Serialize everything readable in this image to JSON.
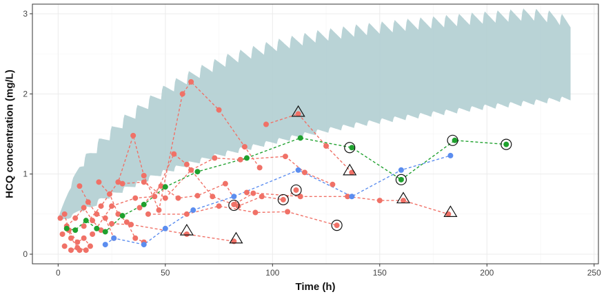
{
  "chart_data": {
    "type": "scatter",
    "title": "",
    "xlabel": "Time (h)",
    "ylabel": "HCQ concentration (mg/L)",
    "xlim": [
      -12,
      252
    ],
    "ylim": [
      -0.12,
      3.12
    ],
    "xticks": [
      0,
      50,
      100,
      150,
      200,
      250
    ],
    "xtick_labels": [
      "0",
      "50",
      "100",
      "150",
      "200",
      "250"
    ],
    "yticks": [
      0,
      1,
      2,
      3
    ],
    "ytick_labels": [
      "0",
      "1",
      "2",
      "3"
    ],
    "grid": true,
    "legend": "none",
    "colors": {
      "series_red": "#f07167",
      "series_green": "#1fa12e",
      "series_blue": "#5b8def",
      "band": "#afcdd0",
      "panel_border": "#333333",
      "grid": "#ebebeb"
    },
    "prediction_band": {
      "lower": [
        [
          0,
          0.42
        ],
        [
          5,
          0.45
        ],
        [
          10,
          0.55
        ],
        [
          15,
          0.58
        ],
        [
          20,
          0.68
        ],
        [
          30,
          0.8
        ],
        [
          40,
          0.92
        ],
        [
          50,
          1.03
        ],
        [
          60,
          1.12
        ],
        [
          70,
          1.2
        ],
        [
          80,
          1.27
        ],
        [
          100,
          1.4
        ],
        [
          120,
          1.52
        ],
        [
          140,
          1.62
        ],
        [
          160,
          1.7
        ],
        [
          180,
          1.77
        ],
        [
          200,
          1.84
        ],
        [
          220,
          1.89
        ],
        [
          232,
          1.93
        ],
        [
          239,
          1.94
        ]
      ],
      "upper": [
        [
          0,
          0.45
        ],
        [
          5,
          0.8
        ],
        [
          10,
          1.1
        ],
        [
          15,
          1.25
        ],
        [
          20,
          1.4
        ],
        [
          30,
          1.65
        ],
        [
          40,
          1.85
        ],
        [
          50,
          2.05
        ],
        [
          60,
          2.2
        ],
        [
          70,
          2.33
        ],
        [
          80,
          2.44
        ],
        [
          100,
          2.6
        ],
        [
          120,
          2.72
        ],
        [
          140,
          2.8
        ],
        [
          160,
          2.86
        ],
        [
          180,
          2.91
        ],
        [
          200,
          2.96
        ],
        [
          220,
          3.0
        ],
        [
          232,
          2.96
        ],
        [
          239,
          2.88
        ]
      ],
      "dose_interval": 6,
      "peak_amplitude": 0.16,
      "trough_amplitude": 0.07
    },
    "series": [
      {
        "color": "red",
        "marker": "circle",
        "points": [
          [
            1,
            0.45
          ],
          [
            3,
            0.5
          ],
          [
            6,
            0.2
          ],
          [
            10,
            0.05
          ]
        ]
      },
      {
        "color": "red",
        "marker": "circle",
        "points": [
          [
            2,
            0.25
          ],
          [
            5,
            0.3
          ],
          [
            9,
            0.15
          ],
          [
            12,
            0.2
          ],
          [
            15,
            0.1
          ]
        ]
      },
      {
        "color": "red",
        "marker": "circle",
        "points": [
          [
            3,
            0.1
          ],
          [
            6,
            0.05
          ],
          [
            9,
            0.08
          ],
          [
            13,
            0.05
          ]
        ]
      },
      {
        "color": "red",
        "marker": "circle",
        "points": [
          [
            4,
            0.35
          ],
          [
            8,
            0.45
          ],
          [
            12,
            0.58
          ],
          [
            16,
            0.42
          ],
          [
            20,
            0.3
          ]
        ]
      },
      {
        "color": "red",
        "marker": "circle",
        "points": [
          [
            10,
            0.85
          ],
          [
            14,
            0.65
          ],
          [
            18,
            0.5
          ],
          [
            22,
            0.45
          ],
          [
            26,
            0.2
          ]
        ]
      },
      {
        "color": "red",
        "marker": "circle",
        "points": [
          [
            19,
            0.9
          ],
          [
            24,
            0.75
          ],
          [
            28,
            0.5
          ],
          [
            32,
            0.4
          ],
          [
            36,
            0.2
          ],
          [
            40,
            0.15
          ]
        ]
      },
      {
        "color": "red",
        "marker": "circle",
        "points": [
          [
            12,
            0.35
          ],
          [
            20,
            0.6
          ],
          [
            28,
            0.9
          ],
          [
            35,
            1.48
          ],
          [
            40,
            0.98
          ],
          [
            47,
            0.55
          ],
          [
            58,
            2.0
          ],
          [
            62,
            2.15
          ],
          [
            75,
            1.8
          ],
          [
            87,
            1.34
          ],
          [
            94,
            1.08
          ]
        ]
      },
      {
        "color": "red",
        "marker": "circle",
        "points": [
          [
            16,
            0.25
          ],
          [
            25,
            0.6
          ],
          [
            36,
            0.7
          ],
          [
            45,
            0.72
          ],
          [
            54,
            1.25
          ],
          [
            60,
            1.12
          ],
          [
            72,
            0.72
          ],
          [
            82,
            0.62
          ],
          [
            91,
            0.76
          ]
        ]
      },
      {
        "color": "red",
        "marker": "circle",
        "points": [
          [
            30,
            0.88
          ],
          [
            40,
            0.9
          ],
          [
            50,
            0.7
          ],
          [
            62,
            1.05
          ],
          [
            73,
            1.2
          ],
          [
            85,
            1.18
          ],
          [
            106,
            1.22
          ],
          [
            115,
            1.02
          ],
          [
            128,
            0.87
          ]
        ]
      },
      {
        "color": "red",
        "marker": "circle",
        "points": [
          [
            38,
            0.58
          ],
          [
            48,
            0.85
          ],
          [
            56,
            0.7
          ],
          [
            65,
            0.73
          ],
          [
            78,
            0.88
          ],
          [
            84,
            0.6
          ],
          [
            95,
            0.72
          ],
          [
            105,
            0.68
          ],
          [
            111,
            0.8
          ]
        ]
      },
      {
        "color": "red",
        "marker": "circle",
        "points": [
          [
            42,
            0.5
          ],
          [
            60,
            0.5
          ],
          [
            75,
            0.6
          ],
          [
            92,
            0.52
          ],
          [
            107,
            0.53
          ],
          [
            130,
            0.36
          ]
        ]
      },
      {
        "color": "red",
        "marker": "circle",
        "points": [
          [
            25,
            0.38
          ],
          [
            34,
            0.37
          ],
          [
            60,
            0.25
          ],
          [
            82,
            0.16
          ]
        ]
      },
      {
        "color": "red",
        "marker": "circle",
        "points": [
          [
            97,
            1.62
          ],
          [
            112,
            1.75
          ],
          [
            125,
            1.35
          ],
          [
            137,
            1.02
          ]
        ]
      },
      {
        "color": "red",
        "marker": "circle",
        "points": [
          [
            88,
            0.77
          ],
          [
            113,
            0.72
          ],
          [
            135,
            0.72
          ],
          [
            150,
            0.67
          ],
          [
            161,
            0.67
          ],
          [
            182,
            0.5
          ]
        ]
      },
      {
        "color": "green",
        "marker": "circle",
        "points": [
          [
            4,
            0.32
          ],
          [
            8,
            0.3
          ],
          [
            13,
            0.42
          ],
          [
            18,
            0.32
          ],
          [
            22,
            0.28
          ],
          [
            30,
            0.48
          ],
          [
            40,
            0.62
          ],
          [
            50,
            0.84
          ],
          [
            65,
            1.03
          ],
          [
            88,
            1.2
          ],
          [
            113,
            1.45
          ],
          [
            137,
            1.33
          ],
          [
            160,
            0.93
          ],
          [
            185,
            1.42
          ],
          [
            209,
            1.37
          ]
        ]
      },
      {
        "color": "blue",
        "marker": "circle",
        "points": [
          [
            22,
            0.12
          ],
          [
            26,
            0.2
          ],
          [
            40,
            0.12
          ],
          [
            50,
            0.32
          ],
          [
            63,
            0.55
          ],
          [
            82,
            0.72
          ],
          [
            112,
            1.05
          ],
          [
            137,
            0.72
          ],
          [
            160,
            1.05
          ],
          [
            183,
            1.23
          ]
        ]
      }
    ],
    "circled_points": [
      [
        136,
        1.33
      ],
      [
        160,
        0.93
      ],
      [
        184,
        1.42
      ],
      [
        209,
        1.37
      ],
      [
        82,
        0.61
      ],
      [
        105,
        0.68
      ],
      [
        111,
        0.8
      ],
      [
        130,
        0.36
      ]
    ],
    "triangle_points": [
      [
        60,
        0.27
      ],
      [
        83,
        0.17
      ],
      [
        112,
        1.75
      ],
      [
        136,
        1.02
      ],
      [
        161,
        0.67
      ],
      [
        183,
        0.5
      ]
    ]
  }
}
